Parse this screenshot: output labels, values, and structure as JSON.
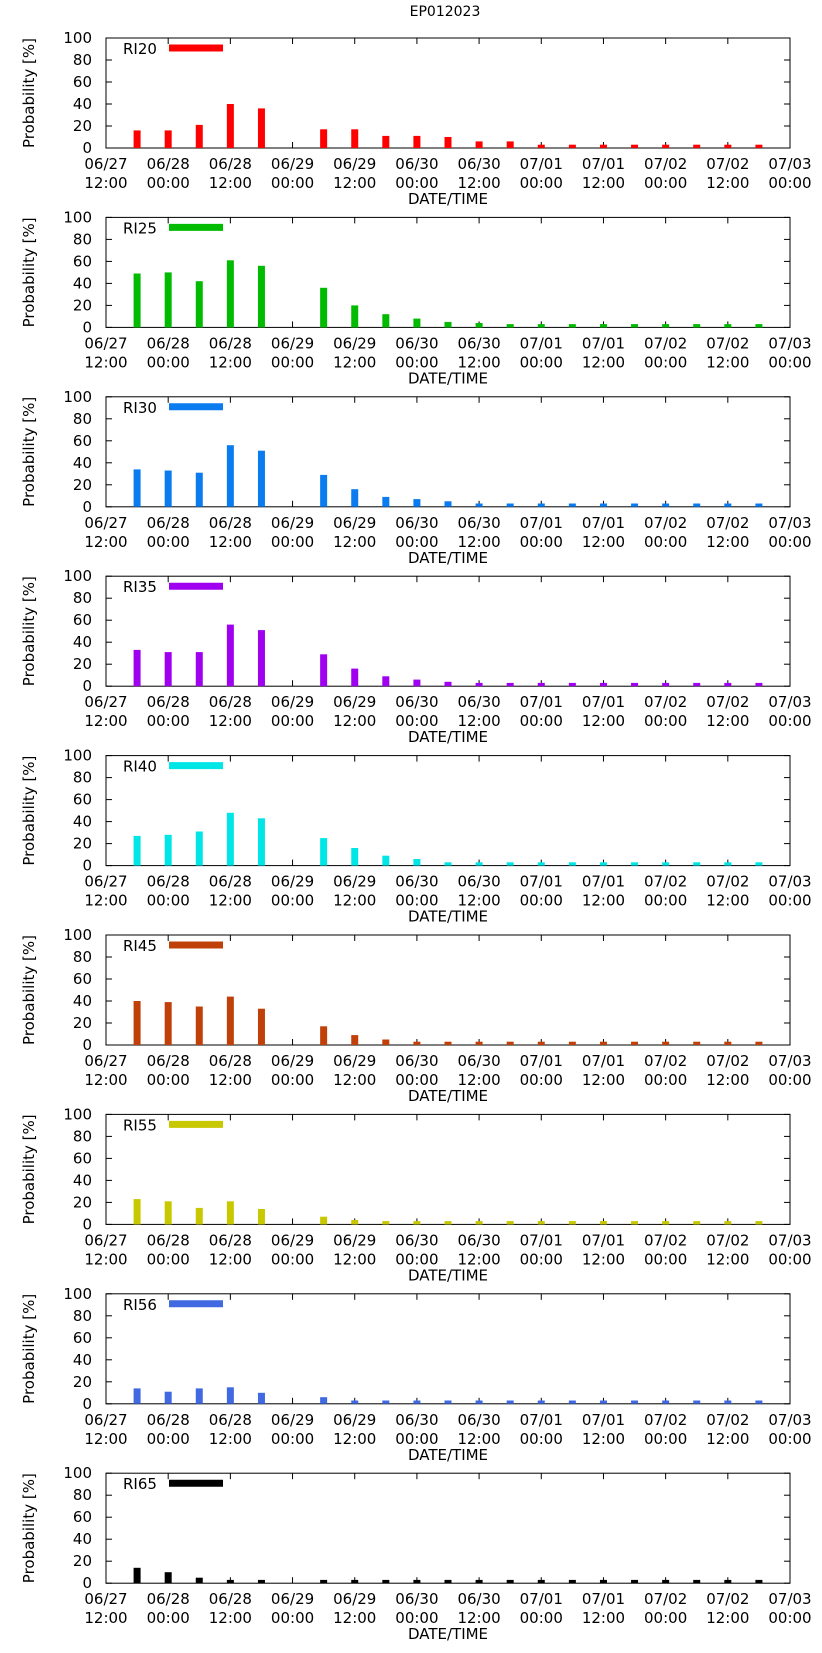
{
  "title": "EP012023",
  "chart_data": [
    {
      "type": "bar",
      "label": "RI20",
      "color": "#ff0000",
      "ylabel": "Probability [%]",
      "xlabel": "DATE/TIME",
      "ylim": [
        0,
        100
      ],
      "yticks": [
        0,
        20,
        40,
        60,
        80,
        100
      ],
      "xticks": [
        [
          "06/27",
          "12:00"
        ],
        [
          "06/28",
          "00:00"
        ],
        [
          "06/28",
          "12:00"
        ],
        [
          "06/29",
          "00:00"
        ],
        [
          "06/29",
          "12:00"
        ],
        [
          "06/30",
          "00:00"
        ],
        [
          "06/30",
          "12:00"
        ],
        [
          "07/01",
          "00:00"
        ],
        [
          "07/01",
          "12:00"
        ],
        [
          "07/02",
          "00:00"
        ],
        [
          "07/02",
          "12:00"
        ],
        [
          "07/03",
          "00:00"
        ]
      ],
      "x_hours": [
        6,
        12,
        18,
        24,
        30,
        42,
        48,
        54,
        60,
        66,
        72,
        78,
        84,
        90,
        96,
        102,
        108,
        114,
        120,
        126
      ],
      "values": [
        16,
        16,
        21,
        40,
        36,
        17,
        17,
        11,
        11,
        10,
        6,
        6,
        3,
        3,
        3,
        3,
        3,
        3,
        3,
        3
      ]
    },
    {
      "type": "bar",
      "label": "RI25",
      "color": "#00bb00",
      "ylabel": "Probability [%]",
      "xlabel": "DATE/TIME",
      "ylim": [
        0,
        100
      ],
      "yticks": [
        0,
        20,
        40,
        60,
        80,
        100
      ],
      "xticks": [
        [
          "06/27",
          "12:00"
        ],
        [
          "06/28",
          "00:00"
        ],
        [
          "06/28",
          "12:00"
        ],
        [
          "06/29",
          "00:00"
        ],
        [
          "06/29",
          "12:00"
        ],
        [
          "06/30",
          "00:00"
        ],
        [
          "06/30",
          "12:00"
        ],
        [
          "07/01",
          "00:00"
        ],
        [
          "07/01",
          "12:00"
        ],
        [
          "07/02",
          "00:00"
        ],
        [
          "07/02",
          "12:00"
        ],
        [
          "07/03",
          "00:00"
        ]
      ],
      "x_hours": [
        6,
        12,
        18,
        24,
        30,
        42,
        48,
        54,
        60,
        66,
        72,
        78,
        84,
        90,
        96,
        102,
        108,
        114,
        120,
        126
      ],
      "values": [
        49,
        50,
        42,
        61,
        56,
        36,
        20,
        12,
        8,
        5,
        4,
        3,
        3,
        3,
        3,
        3,
        3,
        3,
        3,
        3
      ]
    },
    {
      "type": "bar",
      "label": "RI30",
      "color": "#0b7cf0",
      "ylabel": "Probability [%]",
      "xlabel": "DATE/TIME",
      "ylim": [
        0,
        100
      ],
      "yticks": [
        0,
        20,
        40,
        60,
        80,
        100
      ],
      "xticks": [
        [
          "06/27",
          "12:00"
        ],
        [
          "06/28",
          "00:00"
        ],
        [
          "06/28",
          "12:00"
        ],
        [
          "06/29",
          "00:00"
        ],
        [
          "06/29",
          "12:00"
        ],
        [
          "06/30",
          "00:00"
        ],
        [
          "06/30",
          "12:00"
        ],
        [
          "07/01",
          "00:00"
        ],
        [
          "07/01",
          "12:00"
        ],
        [
          "07/02",
          "00:00"
        ],
        [
          "07/02",
          "12:00"
        ],
        [
          "07/03",
          "00:00"
        ]
      ],
      "x_hours": [
        6,
        12,
        18,
        24,
        30,
        42,
        48,
        54,
        60,
        66,
        72,
        78,
        84,
        90,
        96,
        102,
        108,
        114,
        120,
        126
      ],
      "values": [
        34,
        33,
        31,
        56,
        51,
        29,
        16,
        9,
        7,
        5,
        3,
        3,
        3,
        3,
        3,
        3,
        3,
        3,
        3,
        3
      ]
    },
    {
      "type": "bar",
      "label": "RI35",
      "color": "#a000f0",
      "ylabel": "Probability [%]",
      "xlabel": "DATE/TIME",
      "ylim": [
        0,
        100
      ],
      "yticks": [
        0,
        20,
        40,
        60,
        80,
        100
      ],
      "xticks": [
        [
          "06/27",
          "12:00"
        ],
        [
          "06/28",
          "00:00"
        ],
        [
          "06/28",
          "12:00"
        ],
        [
          "06/29",
          "00:00"
        ],
        [
          "06/29",
          "12:00"
        ],
        [
          "06/30",
          "00:00"
        ],
        [
          "06/30",
          "12:00"
        ],
        [
          "07/01",
          "00:00"
        ],
        [
          "07/01",
          "12:00"
        ],
        [
          "07/02",
          "00:00"
        ],
        [
          "07/02",
          "12:00"
        ],
        [
          "07/03",
          "00:00"
        ]
      ],
      "x_hours": [
        6,
        12,
        18,
        24,
        30,
        42,
        48,
        54,
        60,
        66,
        72,
        78,
        84,
        90,
        96,
        102,
        108,
        114,
        120,
        126
      ],
      "values": [
        33,
        31,
        31,
        56,
        51,
        29,
        16,
        9,
        6,
        4,
        3,
        3,
        3,
        3,
        3,
        3,
        3,
        3,
        3,
        3
      ]
    },
    {
      "type": "bar",
      "label": "RI40",
      "color": "#00e6e6",
      "ylabel": "Probability [%]",
      "xlabel": "DATE/TIME",
      "ylim": [
        0,
        100
      ],
      "yticks": [
        0,
        20,
        40,
        60,
        80,
        100
      ],
      "xticks": [
        [
          "06/27",
          "12:00"
        ],
        [
          "06/28",
          "00:00"
        ],
        [
          "06/28",
          "12:00"
        ],
        [
          "06/29",
          "00:00"
        ],
        [
          "06/29",
          "12:00"
        ],
        [
          "06/30",
          "00:00"
        ],
        [
          "06/30",
          "12:00"
        ],
        [
          "07/01",
          "00:00"
        ],
        [
          "07/01",
          "12:00"
        ],
        [
          "07/02",
          "00:00"
        ],
        [
          "07/02",
          "12:00"
        ],
        [
          "07/03",
          "00:00"
        ]
      ],
      "x_hours": [
        6,
        12,
        18,
        24,
        30,
        42,
        48,
        54,
        60,
        66,
        72,
        78,
        84,
        90,
        96,
        102,
        108,
        114,
        120,
        126
      ],
      "values": [
        27,
        28,
        31,
        48,
        43,
        25,
        16,
        9,
        6,
        3,
        3,
        3,
        3,
        3,
        3,
        3,
        3,
        3,
        3,
        3
      ]
    },
    {
      "type": "bar",
      "label": "RI45",
      "color": "#c0400a",
      "ylabel": "Probability [%]",
      "xlabel": "DATE/TIME",
      "ylim": [
        0,
        100
      ],
      "yticks": [
        0,
        20,
        40,
        60,
        80,
        100
      ],
      "xticks": [
        [
          "06/27",
          "12:00"
        ],
        [
          "06/28",
          "00:00"
        ],
        [
          "06/28",
          "12:00"
        ],
        [
          "06/29",
          "00:00"
        ],
        [
          "06/29",
          "12:00"
        ],
        [
          "06/30",
          "00:00"
        ],
        [
          "06/30",
          "12:00"
        ],
        [
          "07/01",
          "00:00"
        ],
        [
          "07/01",
          "12:00"
        ],
        [
          "07/02",
          "00:00"
        ],
        [
          "07/02",
          "12:00"
        ],
        [
          "07/03",
          "00:00"
        ]
      ],
      "x_hours": [
        6,
        12,
        18,
        24,
        30,
        42,
        48,
        54,
        60,
        66,
        72,
        78,
        84,
        90,
        96,
        102,
        108,
        114,
        120,
        126
      ],
      "values": [
        40,
        39,
        35,
        44,
        33,
        17,
        9,
        5,
        3,
        3,
        3,
        3,
        3,
        3,
        3,
        3,
        3,
        3,
        3,
        3
      ]
    },
    {
      "type": "bar",
      "label": "RI55",
      "color": "#c8c800",
      "ylabel": "Probability [%]",
      "xlabel": "DATE/TIME",
      "ylim": [
        0,
        100
      ],
      "yticks": [
        0,
        20,
        40,
        60,
        80,
        100
      ],
      "xticks": [
        [
          "06/27",
          "12:00"
        ],
        [
          "06/28",
          "00:00"
        ],
        [
          "06/28",
          "12:00"
        ],
        [
          "06/29",
          "00:00"
        ],
        [
          "06/29",
          "12:00"
        ],
        [
          "06/30",
          "00:00"
        ],
        [
          "06/30",
          "12:00"
        ],
        [
          "07/01",
          "00:00"
        ],
        [
          "07/01",
          "12:00"
        ],
        [
          "07/02",
          "00:00"
        ],
        [
          "07/02",
          "12:00"
        ],
        [
          "07/03",
          "00:00"
        ]
      ],
      "x_hours": [
        6,
        12,
        18,
        24,
        30,
        42,
        48,
        54,
        60,
        66,
        72,
        78,
        84,
        90,
        96,
        102,
        108,
        114,
        120,
        126
      ],
      "values": [
        23,
        21,
        15,
        21,
        14,
        7,
        4,
        3,
        3,
        3,
        3,
        3,
        3,
        3,
        3,
        3,
        3,
        3,
        3,
        3
      ]
    },
    {
      "type": "bar",
      "label": "RI56",
      "color": "#4169e1",
      "ylabel": "Probability [%]",
      "xlabel": "DATE/TIME",
      "ylim": [
        0,
        100
      ],
      "yticks": [
        0,
        20,
        40,
        60,
        80,
        100
      ],
      "xticks": [
        [
          "06/27",
          "12:00"
        ],
        [
          "06/28",
          "00:00"
        ],
        [
          "06/28",
          "12:00"
        ],
        [
          "06/29",
          "00:00"
        ],
        [
          "06/29",
          "12:00"
        ],
        [
          "06/30",
          "00:00"
        ],
        [
          "06/30",
          "12:00"
        ],
        [
          "07/01",
          "00:00"
        ],
        [
          "07/01",
          "12:00"
        ],
        [
          "07/02",
          "00:00"
        ],
        [
          "07/02",
          "12:00"
        ],
        [
          "07/03",
          "00:00"
        ]
      ],
      "x_hours": [
        6,
        12,
        18,
        24,
        30,
        42,
        48,
        54,
        60,
        66,
        72,
        78,
        84,
        90,
        96,
        102,
        108,
        114,
        120,
        126
      ],
      "values": [
        14,
        11,
        14,
        15,
        10,
        6,
        3,
        3,
        3,
        3,
        3,
        3,
        3,
        3,
        3,
        3,
        3,
        3,
        3,
        3
      ]
    },
    {
      "type": "bar",
      "label": "RI65",
      "color": "#000000",
      "ylabel": "Probability [%]",
      "xlabel": "DATE/TIME",
      "ylim": [
        0,
        100
      ],
      "yticks": [
        0,
        20,
        40,
        60,
        80,
        100
      ],
      "xticks": [
        [
          "06/27",
          "12:00"
        ],
        [
          "06/28",
          "00:00"
        ],
        [
          "06/28",
          "12:00"
        ],
        [
          "06/29",
          "00:00"
        ],
        [
          "06/29",
          "12:00"
        ],
        [
          "06/30",
          "00:00"
        ],
        [
          "06/30",
          "12:00"
        ],
        [
          "07/01",
          "00:00"
        ],
        [
          "07/01",
          "12:00"
        ],
        [
          "07/02",
          "00:00"
        ],
        [
          "07/02",
          "12:00"
        ],
        [
          "07/03",
          "00:00"
        ]
      ],
      "x_hours": [
        6,
        12,
        18,
        24,
        30,
        42,
        48,
        54,
        60,
        66,
        72,
        78,
        84,
        90,
        96,
        102,
        108,
        114,
        120,
        126
      ],
      "values": [
        14,
        10,
        5,
        3,
        3,
        3,
        3,
        3,
        3,
        3,
        3,
        3,
        3,
        3,
        3,
        3,
        3,
        3,
        3,
        3
      ]
    }
  ]
}
